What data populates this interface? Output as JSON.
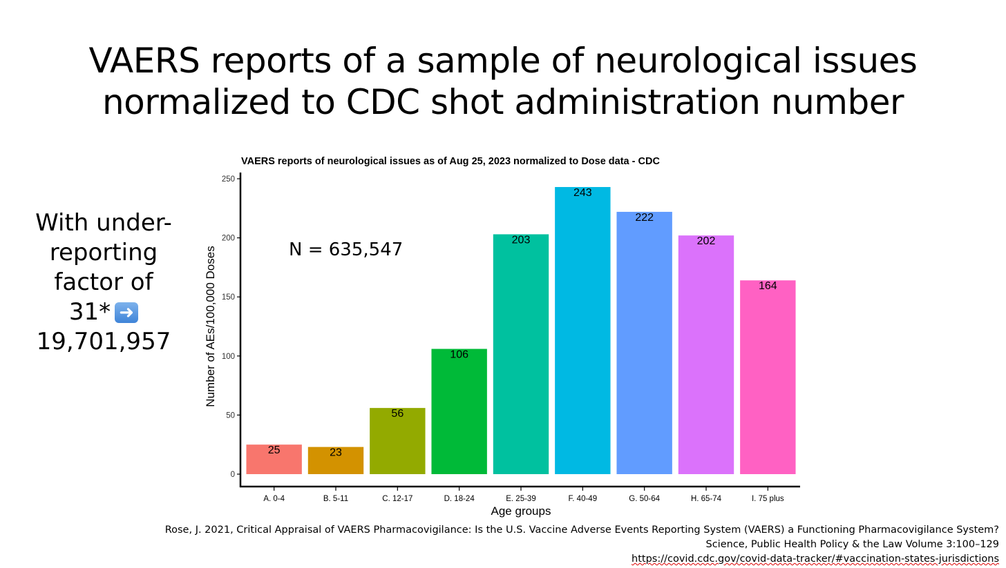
{
  "slide": {
    "title_lines": [
      "VAERS reports of a sample of neurological issues",
      "normalized to CDC shot administration number"
    ],
    "side_note_lines": [
      "With under-",
      "reporting",
      "factor of",
      "31*"
    ],
    "side_note_total": "19,701,957",
    "side_note_icon": "right-arrow-emoji-icon",
    "references": [
      "Rose, J. 2021, Critical Appraisal of VAERS Pharmacovigilance: Is the U.S. Vaccine Adverse Events Reporting System (VAERS) a Functioning Pharmacovigilance System?",
      "Science, Public Health Policy & the Law Volume 3:100–129",
      "https://covid.cdc.gov/covid-data-tracker/#vaccination-states-jurisdictions"
    ]
  },
  "chart_data": {
    "type": "bar",
    "title": "VAERS reports of neurological issues as of Aug 25, 2023 normalized to Dose data - CDC",
    "xlabel": "Age groups",
    "ylabel": "Number of AEs/100,000 Doses",
    "categories": [
      "A. 0-4",
      "B. 5-11",
      "C. 12-17",
      "D. 18-24",
      "E. 25-39",
      "F. 40-49",
      "G. 50-64",
      "H. 65-74",
      "I. 75 plus"
    ],
    "values": [
      25,
      23,
      56,
      106,
      203,
      243,
      222,
      202,
      164
    ],
    "data_labels": [
      "25",
      "23",
      "56",
      "106",
      "203",
      "243",
      "222",
      "202",
      "164"
    ],
    "colors": [
      "#F8766D",
      "#D39200",
      "#93AA00",
      "#00BA38",
      "#00C19F",
      "#00B9E3",
      "#619CFF",
      "#DB72FB",
      "#FF61C3"
    ],
    "ylim": [
      0,
      250
    ],
    "yticks": [
      0,
      50,
      100,
      150,
      200,
      250
    ],
    "annotation": "N = 635,547",
    "grid": false,
    "legend": "none"
  }
}
